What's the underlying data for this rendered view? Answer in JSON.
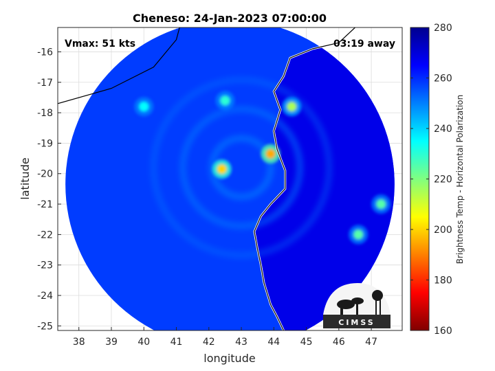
{
  "chart_data": {
    "type": "heatmap",
    "title": "Cheneso: 24-Jan-2023 07:00:00",
    "xlabel": "longitude",
    "ylabel": "latitude",
    "xlim": [
      37.35,
      47.95
    ],
    "ylim": [
      -25.15,
      -15.2
    ],
    "xticks": [
      "38",
      "39",
      "40",
      "41",
      "42",
      "43",
      "44",
      "45",
      "46",
      "47"
    ],
    "yticks": [
      "-16",
      "-17",
      "-18",
      "-19",
      "-20",
      "-21",
      "-22",
      "-23",
      "-24",
      "-25"
    ],
    "grid": true,
    "annotations": {
      "vmax": "Vmax: 51 kts",
      "time_away": "03:19 away"
    },
    "colorbar": {
      "label": "Brightness Temp - Horizontal Polarization",
      "range": [
        160,
        280
      ],
      "ticks": [
        "160",
        "180",
        "200",
        "220",
        "240",
        "260",
        "280"
      ],
      "colormap": "jet"
    },
    "swath": {
      "center_lon": 42.65,
      "center_lat": -20.35,
      "radius_deg": 5.4
    },
    "features": [
      {
        "lon": 43.9,
        "lat": -19.35,
        "tb": 195
      },
      {
        "lon": 42.4,
        "lat": -19.85,
        "tb": 200
      },
      {
        "lon": 44.55,
        "lat": -17.8,
        "tb": 215
      },
      {
        "lon": 42.5,
        "lat": -17.6,
        "tb": 230
      },
      {
        "lon": 40.0,
        "lat": -17.8,
        "tb": 235
      },
      {
        "lon": 46.6,
        "lat": -22.0,
        "tb": 225
      },
      {
        "lon": 47.3,
        "lat": -21.0,
        "tb": 225
      }
    ],
    "logo_text": "CIMSS"
  }
}
